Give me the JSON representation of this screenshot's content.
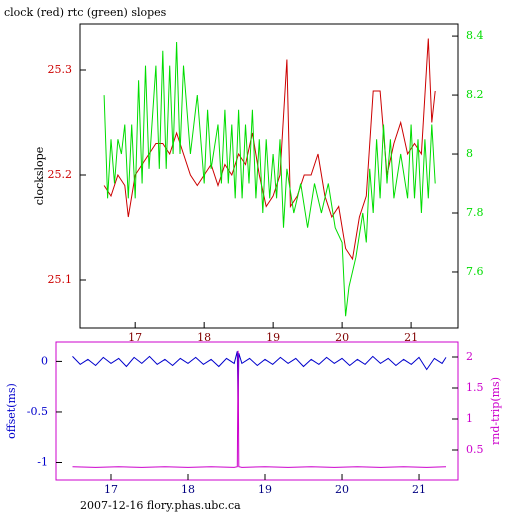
{
  "chart_data": [
    {
      "type": "line",
      "title": "clock (red) rtc (green) slopes",
      "ylabel": "clockslope",
      "xlim": [
        16.2,
        21.68
      ],
      "xticks": [
        17,
        18,
        19,
        20,
        21
      ],
      "ylim": [
        25.0543,
        25.3438
      ],
      "yticks": [
        25.1,
        25.2,
        25.3
      ],
      "y2lim": [
        7.41,
        8.441
      ],
      "y2ticks": [
        7.6,
        7.8,
        8,
        8.2,
        8.4
      ],
      "series": [
        {
          "color": "#cc0000",
          "x": [
            16.55,
            16.65,
            16.75,
            16.85,
            16.9,
            17.0,
            17.1,
            17.2,
            17.3,
            17.4,
            17.5,
            17.6,
            17.7,
            17.8,
            17.9,
            18.0,
            18.1,
            18.2,
            18.3,
            18.4,
            18.5,
            18.6,
            18.7,
            18.8,
            18.9,
            19.0,
            19.1,
            19.2,
            19.25,
            19.35,
            19.45,
            19.55,
            19.65,
            19.75,
            19.85,
            19.95,
            20.05,
            20.15,
            20.25,
            20.35,
            20.45,
            20.55,
            20.65,
            20.75,
            20.85,
            20.95,
            21.05,
            21.15,
            21.25,
            21.3,
            21.35
          ],
          "values": [
            25.19,
            25.18,
            25.2,
            25.19,
            25.16,
            25.2,
            25.21,
            25.22,
            25.23,
            25.23,
            25.22,
            25.24,
            25.22,
            25.2,
            25.19,
            25.2,
            25.21,
            25.19,
            25.21,
            25.2,
            25.22,
            25.21,
            25.24,
            25.2,
            25.17,
            25.18,
            25.2,
            25.31,
            25.17,
            25.18,
            25.2,
            25.2,
            25.22,
            25.18,
            25.16,
            25.17,
            25.13,
            25.12,
            25.16,
            25.18,
            25.28,
            25.28,
            25.2,
            25.23,
            25.25,
            25.22,
            25.23,
            25.22,
            25.33,
            25.25,
            25.28
          ]
        },
        {
          "color": "#00dd00",
          "axis": "y2",
          "x": [
            16.55,
            16.6,
            16.65,
            16.7,
            16.75,
            16.8,
            16.85,
            16.9,
            16.95,
            17.0,
            17.05,
            17.1,
            17.15,
            17.2,
            17.3,
            17.35,
            17.4,
            17.45,
            17.5,
            17.55,
            17.6,
            17.65,
            17.7,
            17.8,
            17.9,
            18.0,
            18.05,
            18.1,
            18.2,
            18.25,
            18.3,
            18.35,
            18.4,
            18.45,
            18.5,
            18.55,
            18.6,
            18.65,
            18.7,
            18.75,
            18.8,
            18.85,
            18.9,
            18.95,
            19.0,
            19.05,
            19.1,
            19.15,
            19.2,
            19.3,
            19.4,
            19.5,
            19.6,
            19.7,
            19.8,
            19.9,
            20.0,
            20.05,
            20.1,
            20.2,
            20.3,
            20.35,
            20.4,
            20.45,
            20.5,
            20.55,
            20.6,
            20.65,
            20.7,
            20.75,
            20.85,
            20.95,
            21.0,
            21.05,
            21.1,
            21.15,
            21.2,
            21.25,
            21.3,
            21.35
          ],
          "values": [
            8.2,
            7.85,
            8.05,
            7.9,
            8.05,
            8.0,
            8.1,
            7.85,
            8.1,
            7.85,
            8.25,
            7.9,
            8.3,
            7.95,
            8.3,
            7.95,
            8.35,
            7.95,
            8.3,
            8.0,
            8.38,
            8.0,
            8.3,
            8.0,
            8.2,
            7.9,
            8.15,
            7.95,
            8.1,
            7.9,
            8.15,
            7.9,
            8.1,
            7.85,
            8.15,
            7.85,
            8.1,
            7.9,
            8.15,
            7.85,
            8.05,
            7.8,
            8.05,
            7.85,
            8.0,
            7.85,
            8.05,
            7.75,
            7.95,
            7.8,
            7.9,
            7.75,
            7.9,
            7.8,
            7.9,
            7.75,
            7.7,
            7.45,
            7.55,
            7.65,
            7.8,
            7.7,
            7.95,
            7.8,
            8.05,
            7.85,
            8.1,
            7.9,
            8.05,
            7.85,
            8.0,
            7.85,
            8.1,
            7.85,
            8.05,
            7.8,
            8.05,
            7.85,
            8.1,
            7.9
          ]
        }
      ]
    },
    {
      "type": "line",
      "ylabel": "offset(ms)",
      "y2label": "rnd-trip(ms)",
      "xlim": [
        16.286,
        21.506
      ],
      "xticks": [
        17,
        18,
        19,
        20,
        21
      ],
      "ylim": [
        -1.173,
        0.192
      ],
      "yticks": [
        -1,
        -0.5,
        0
      ],
      "y2lim": [
        0.016,
        2.242
      ],
      "y2ticks": [
        0.5,
        1,
        1.5,
        2
      ],
      "series": [
        {
          "color": "#0000cc",
          "x": [
            16.5,
            16.6,
            16.7,
            16.8,
            16.9,
            17.0,
            17.1,
            17.2,
            17.3,
            17.4,
            17.5,
            17.6,
            17.7,
            17.8,
            17.9,
            18.0,
            18.1,
            18.2,
            18.3,
            18.4,
            18.5,
            18.6,
            18.64,
            18.65,
            18.66,
            18.7,
            18.8,
            18.9,
            19.0,
            19.1,
            19.2,
            19.3,
            19.4,
            19.5,
            19.6,
            19.7,
            19.8,
            19.9,
            20.0,
            20.1,
            20.2,
            20.3,
            20.4,
            20.5,
            20.6,
            20.7,
            20.8,
            20.9,
            21.0,
            21.1,
            21.2,
            21.3,
            21.35
          ],
          "values": [
            0.05,
            -0.03,
            0.02,
            -0.04,
            0.04,
            -0.02,
            0.03,
            -0.05,
            0.04,
            -0.02,
            0.05,
            -0.03,
            0.02,
            -0.04,
            0.03,
            -0.02,
            0.04,
            -0.03,
            0.02,
            -0.05,
            0.03,
            -0.02,
            0.1,
            -0.46,
            0.08,
            -0.02,
            0.03,
            -0.04,
            0.02,
            -0.03,
            0.04,
            -0.02,
            0.03,
            -0.05,
            0.02,
            -0.03,
            0.04,
            -0.02,
            0.03,
            -0.04,
            0.02,
            -0.03,
            0.05,
            -0.02,
            0.03,
            -0.04,
            0.02,
            -0.03,
            0.04,
            -0.08,
            0.03,
            -0.02,
            0.04
          ]
        },
        {
          "color": "#cc00cc",
          "axis": "y2",
          "x": [
            16.5,
            16.8,
            17.1,
            17.4,
            17.7,
            18.0,
            18.3,
            18.6,
            18.64,
            18.65,
            18.66,
            18.7,
            19.0,
            19.3,
            19.6,
            19.9,
            20.2,
            20.5,
            20.8,
            21.1,
            21.35
          ],
          "values": [
            0.23,
            0.22,
            0.23,
            0.22,
            0.23,
            0.22,
            0.23,
            0.22,
            0.23,
            2.1,
            0.23,
            0.22,
            0.23,
            0.22,
            0.23,
            0.22,
            0.23,
            0.22,
            0.23,
            0.22,
            0.23
          ]
        }
      ]
    }
  ],
  "footer": "2007-12-16 flory.phas.ubc.ca"
}
